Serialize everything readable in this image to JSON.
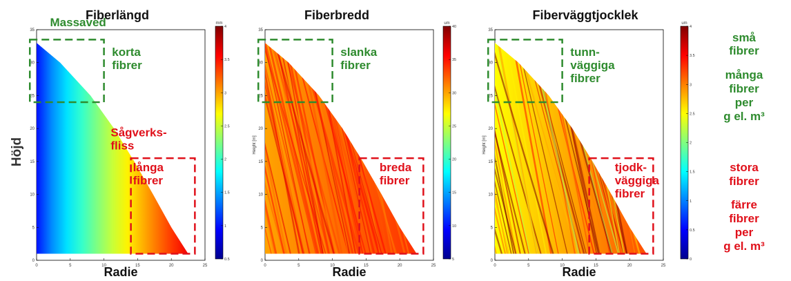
{
  "figure": {
    "ylabel": "Höjd",
    "side_notes": {
      "top": [
        "små",
        "fibrer",
        "många",
        "fibrer",
        "per",
        "g el. m³"
      ],
      "bottom": [
        "stora",
        "fibrer",
        "färre",
        "fibrer",
        "per",
        "g el. m³"
      ]
    }
  },
  "colors": {
    "green_annotation": "#2e8b2e",
    "red_annotation": "#e0101a",
    "colormap": [
      "#00008f",
      "#0000ff",
      "#0080ff",
      "#00ffff",
      "#80ff80",
      "#ffff00",
      "#ff8000",
      "#ff0000",
      "#800000"
    ]
  },
  "chart_data": [
    {
      "type": "heatmap",
      "title": "Fiberlängd",
      "xlabel": "Radie",
      "ylabel": "",
      "xlim": [
        0,
        25
      ],
      "ylim": [
        0,
        35
      ],
      "x_ticks": [
        "0",
        "5",
        "10",
        "15",
        "20",
        "25"
      ],
      "y_ticks": [
        "0",
        "5",
        "10",
        "15",
        "20",
        "25",
        "30",
        "35"
      ],
      "colorbar": {
        "unit": "mm",
        "range": [
          0.5,
          4
        ],
        "ticks": [
          "0.5",
          "1",
          "1.5",
          "2",
          "2.5",
          "3",
          "3.5",
          "4"
        ]
      },
      "profile": {
        "heights": [
          1,
          5,
          10,
          15,
          20,
          25,
          30,
          33
        ],
        "radii": [
          22.5,
          20,
          17.3,
          14.5,
          11.5,
          8,
          3.5,
          0
        ]
      },
      "field": {
        "pith_value": 1.0,
        "outer_value": 3.6,
        "mode": "gradient"
      },
      "annotations": [
        {
          "text": "Massaved",
          "color": "green",
          "box": false,
          "x": 2,
          "y": 35.5
        },
        {
          "text": "korta\nfibrer",
          "color": "green",
          "box": false,
          "x": 11.2,
          "y": 31
        },
        {
          "text": "",
          "color": "green",
          "box": true,
          "x0": -1,
          "x1": 10,
          "y0": 24,
          "y1": 33.5
        },
        {
          "text": "Sågverks-\nfliss",
          "color": "red",
          "box": false,
          "x": 11,
          "y": 18.8
        },
        {
          "text": "långa\nfibrer",
          "color": "red",
          "box": false,
          "x": 14.3,
          "y": 13.5
        },
        {
          "text": "",
          "color": "red",
          "box": true,
          "x0": 14,
          "x1": 23.5,
          "y0": 1,
          "y1": 15.5
        }
      ]
    },
    {
      "type": "heatmap",
      "title": "Fiberbredd",
      "xlabel": "Radie",
      "ylabel": "Height [m]",
      "xlim": [
        0,
        25
      ],
      "ylim": [
        0,
        35
      ],
      "x_ticks": [
        "0",
        "5",
        "10",
        "15",
        "20",
        "25"
      ],
      "y_ticks": [
        "0",
        "5",
        "10",
        "15",
        "20",
        "25",
        "30",
        "35"
      ],
      "colorbar": {
        "unit": "um",
        "range": [
          5,
          40
        ],
        "ticks": [
          "5",
          "10",
          "15",
          "20",
          "25",
          "30",
          "35",
          "40"
        ]
      },
      "profile": {
        "heights": [
          1,
          5,
          10,
          15,
          20,
          25,
          30,
          33
        ],
        "radii": [
          22.5,
          20,
          17.3,
          14.5,
          11.5,
          8,
          3.5,
          0
        ]
      },
      "field": {
        "pith_value": 30,
        "outer_value": 34,
        "mode": "streaky"
      },
      "annotations": [
        {
          "text": "slanka\nfibrer",
          "color": "green",
          "box": false,
          "x": 11.2,
          "y": 31
        },
        {
          "text": "",
          "color": "green",
          "box": true,
          "x0": -1,
          "x1": 10,
          "y0": 24,
          "y1": 33.5
        },
        {
          "text": "breda\nfibrer",
          "color": "red",
          "box": false,
          "x": 17,
          "y": 13.5
        },
        {
          "text": "",
          "color": "red",
          "box": true,
          "x0": 14,
          "x1": 23.5,
          "y0": 1,
          "y1": 15.5
        }
      ]
    },
    {
      "type": "heatmap",
      "title": "Fiberväggtjocklek",
      "xlabel": "Radie",
      "ylabel": "Height [m]",
      "xlim": [
        0,
        25
      ],
      "ylim": [
        0,
        35
      ],
      "x_ticks": [
        "0",
        "5",
        "10",
        "15",
        "20",
        "25"
      ],
      "y_ticks": [
        "0",
        "5",
        "10",
        "15",
        "20",
        "25",
        "30",
        "35"
      ],
      "colorbar": {
        "unit": "um",
        "range": [
          0,
          4
        ],
        "ticks": [
          "0",
          "0.5",
          "1",
          "1.5",
          "2",
          "2.5",
          "3",
          "3.5",
          "4"
        ]
      },
      "profile": {
        "heights": [
          1,
          5,
          10,
          15,
          20,
          25,
          30,
          33
        ],
        "radii": [
          22.5,
          20,
          17.3,
          14.5,
          11.5,
          8,
          3.5,
          0
        ]
      },
      "field": {
        "pith_value": 2.5,
        "outer_value": 3.2,
        "mode": "streaky"
      },
      "annotations": [
        {
          "text": "tunn-\nväggiga\nfibrer",
          "color": "green",
          "box": false,
          "x": 11.2,
          "y": 31
        },
        {
          "text": "",
          "color": "green",
          "box": true,
          "x0": -1,
          "x1": 10,
          "y0": 24,
          "y1": 33.5
        },
        {
          "text": "tjodk-\nväggiga\nfibrer",
          "color": "red",
          "box": false,
          "x": 17.8,
          "y": 13.5
        },
        {
          "text": "",
          "color": "red",
          "box": true,
          "x0": 14,
          "x1": 23.5,
          "y0": 1,
          "y1": 15.5
        }
      ]
    }
  ]
}
